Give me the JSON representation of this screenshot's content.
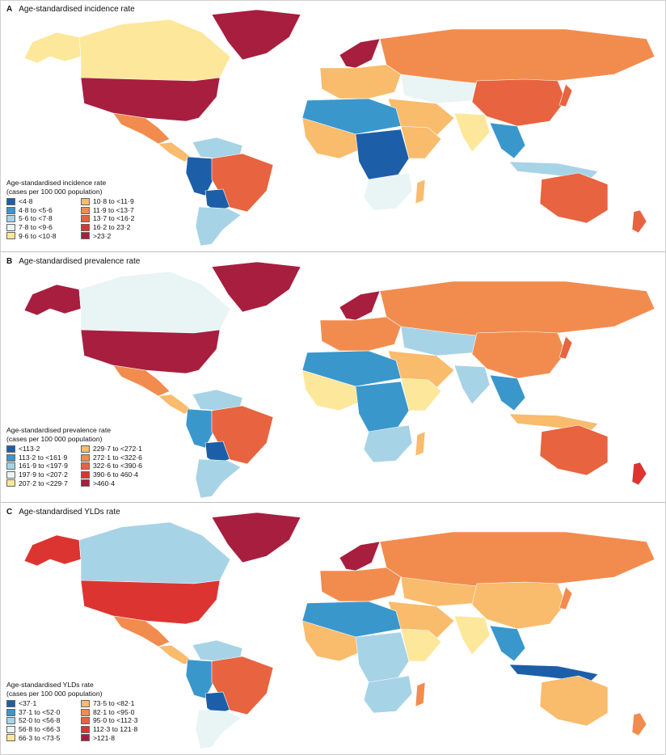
{
  "colors": {
    "c1": "#1c5ea8",
    "c2": "#3a97cc",
    "c3": "#a7d3e6",
    "c4": "#e9f4f4",
    "c5": "#fde79a",
    "c6": "#f9bb6c",
    "c7": "#f28c4e",
    "c8": "#e8633f",
    "c9": "#dc3531",
    "c10": "#a81e3f"
  },
  "panels": [
    {
      "letter": "A",
      "title": "Age-standardised incidence rate",
      "legend_title_1": "Age-standardised incidence rate",
      "legend_title_2": "(cases per 100 000 population)",
      "legend": [
        "<4·8",
        "4·8 to <5·6",
        "5·6 to <7·8",
        "7·8 to <9·6",
        "9·6 to <10·8",
        "10·8 to <11·9",
        "11·9 to <13·7",
        "13·7 to <16·2",
        "16·2 to 23·2",
        ">23·2"
      ],
      "regions": {
        "north_america_north": "c5",
        "usa": "c10",
        "greenland": "c10",
        "alaska": "c5",
        "mexico": "c7",
        "central_america": "c6",
        "south_america_north": "c3",
        "colombia_peru": "c1",
        "brazil": "c8",
        "bolivia": "c1",
        "southern_cone": "c3",
        "scandinavia": "c10",
        "europe": "c6",
        "russia": "c7",
        "central_asia": "c4",
        "china": "c8",
        "india": "c5",
        "middle_east": "c6",
        "north_africa": "c2",
        "west_africa": "c6",
        "central_africa": "c1",
        "east_africa": "c6",
        "southern_africa": "c4",
        "madagascar": "c6",
        "southeast_asia": "c2",
        "indonesia": "c3",
        "australia": "c8",
        "new_zealand": "c8",
        "japan": "c8"
      }
    },
    {
      "letter": "B",
      "title": "Age-standardised prevalence rate",
      "legend_title_1": "Age-standardised prevalence rate",
      "legend_title_2": "(cases per 100 000 population)",
      "legend": [
        "<113·2",
        "113·2 to <161·9",
        "161·9 to <197·9",
        "197·9 to <207·2",
        "207·2 to <229·7",
        "229·7 to <272·1",
        "272·1 to <322·6",
        "322·6 to <390·6",
        "390·6 to 460·4",
        ">460·4"
      ],
      "regions": {
        "north_america_north": "c4",
        "usa": "c10",
        "greenland": "c10",
        "alaska": "c10",
        "mexico": "c7",
        "central_america": "c6",
        "south_america_north": "c3",
        "colombia_peru": "c2",
        "brazil": "c8",
        "bolivia": "c1",
        "southern_cone": "c3",
        "scandinavia": "c10",
        "europe": "c7",
        "russia": "c7",
        "central_asia": "c3",
        "china": "c7",
        "india": "c3",
        "middle_east": "c6",
        "north_africa": "c2",
        "west_africa": "c5",
        "central_africa": "c2",
        "east_africa": "c5",
        "southern_africa": "c3",
        "madagascar": "c6",
        "southeast_asia": "c2",
        "indonesia": "c6",
        "australia": "c8",
        "new_zealand": "c9",
        "japan": "c8"
      }
    },
    {
      "letter": "C",
      "title": "Age-standardised YLDs rate",
      "legend_title_1": "Age-standardised YLDs rate",
      "legend_title_2": "(cases per 100 000 population)",
      "legend": [
        "<37·1",
        "37·1 to <52·0",
        "52·0 to <56·8",
        "56·8 to <66·3",
        "66·3 to <73·5",
        "73·5 to <82·1",
        "82·1 to <95·0",
        "95·0 to <112·3",
        "112·3 to 121·8",
        ">121·8"
      ],
      "regions": {
        "north_america_north": "c3",
        "usa": "c9",
        "greenland": "c10",
        "alaska": "c9",
        "mexico": "c7",
        "central_america": "c6",
        "south_america_north": "c3",
        "colombia_peru": "c2",
        "brazil": "c8",
        "bolivia": "c1",
        "southern_cone": "c4",
        "scandinavia": "c10",
        "europe": "c7",
        "russia": "c7",
        "central_asia": "c6",
        "china": "c6",
        "india": "c5",
        "middle_east": "c6",
        "north_africa": "c2",
        "west_africa": "c6",
        "central_africa": "c3",
        "east_africa": "c5",
        "southern_africa": "c3",
        "madagascar": "c7",
        "southeast_asia": "c2",
        "indonesia": "c1",
        "australia": "c6",
        "new_zealand": "c7",
        "japan": "c7"
      }
    }
  ]
}
